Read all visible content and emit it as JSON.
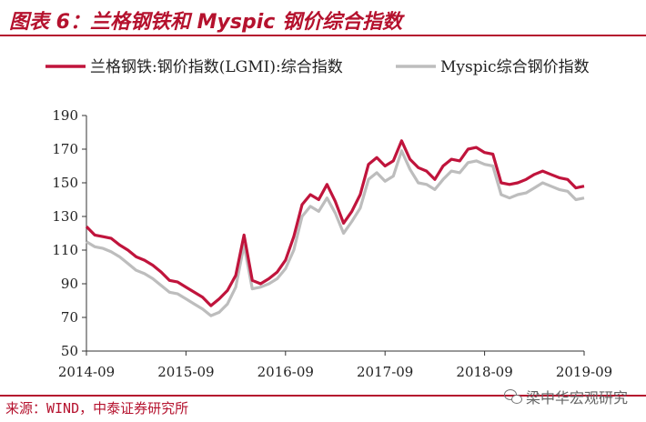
{
  "header": {
    "title": "图表 6：兰格钢铁和 Myspic 钢价综合指数"
  },
  "footer": {
    "source": "来源：WIND，中泰证券研究所",
    "watermark": "梁中华宏观研究"
  },
  "colors": {
    "accent": "#b5122e",
    "series_red": "#c0143c",
    "series_gray": "#bdbdbd"
  },
  "chart_data": {
    "type": "line",
    "title": "",
    "xlabel": "",
    "ylabel": "",
    "ylim": [
      50,
      190
    ],
    "yticks": [
      50,
      70,
      90,
      110,
      130,
      150,
      170,
      190
    ],
    "xrange": [
      "2014-09",
      "2019-09"
    ],
    "xticks": [
      "2014-09",
      "2015-09",
      "2016-09",
      "2017-09",
      "2018-09",
      "2019-09"
    ],
    "legend": "top",
    "grid": false,
    "series": [
      {
        "name": "兰格钢铁:钢价指数(LGMI):综合指数",
        "color": "#c0143c",
        "points": [
          [
            "2014-09",
            124
          ],
          [
            "2014-10",
            119
          ],
          [
            "2014-11",
            118
          ],
          [
            "2014-12",
            117
          ],
          [
            "2015-01",
            113
          ],
          [
            "2015-02",
            110
          ],
          [
            "2015-03",
            106
          ],
          [
            "2015-04",
            104
          ],
          [
            "2015-05",
            101
          ],
          [
            "2015-06",
            97
          ],
          [
            "2015-07",
            92
          ],
          [
            "2015-08",
            91
          ],
          [
            "2015-09",
            88
          ],
          [
            "2015-10",
            85
          ],
          [
            "2015-11",
            82
          ],
          [
            "2015-12",
            77
          ],
          [
            "2016-01",
            81
          ],
          [
            "2016-02",
            86
          ],
          [
            "2016-03",
            95
          ],
          [
            "2016-04",
            119
          ],
          [
            "2016-05",
            92
          ],
          [
            "2016-06",
            90
          ],
          [
            "2016-07",
            93
          ],
          [
            "2016-08",
            97
          ],
          [
            "2016-09",
            104
          ],
          [
            "2016-10",
            118
          ],
          [
            "2016-11",
            137
          ],
          [
            "2016-12",
            143
          ],
          [
            "2017-01",
            140
          ],
          [
            "2017-02",
            149
          ],
          [
            "2017-03",
            139
          ],
          [
            "2017-04",
            126
          ],
          [
            "2017-05",
            133
          ],
          [
            "2017-06",
            143
          ],
          [
            "2017-07",
            161
          ],
          [
            "2017-08",
            165
          ],
          [
            "2017-09",
            160
          ],
          [
            "2017-10",
            163
          ],
          [
            "2017-11",
            175
          ],
          [
            "2017-12",
            164
          ],
          [
            "2018-01",
            159
          ],
          [
            "2018-02",
            157
          ],
          [
            "2018-03",
            152
          ],
          [
            "2018-04",
            160
          ],
          [
            "2018-05",
            164
          ],
          [
            "2018-06",
            163
          ],
          [
            "2018-07",
            170
          ],
          [
            "2018-08",
            171
          ],
          [
            "2018-09",
            168
          ],
          [
            "2018-10",
            167
          ],
          [
            "2018-11",
            150
          ],
          [
            "2018-12",
            149
          ],
          [
            "2019-01",
            150
          ],
          [
            "2019-02",
            152
          ],
          [
            "2019-03",
            155
          ],
          [
            "2019-04",
            157
          ],
          [
            "2019-05",
            155
          ],
          [
            "2019-06",
            153
          ],
          [
            "2019-07",
            152
          ],
          [
            "2019-08",
            147
          ],
          [
            "2019-09",
            148
          ]
        ]
      },
      {
        "name": "Myspic综合钢价指数",
        "color": "#bdbdbd",
        "points": [
          [
            "2014-09",
            115
          ],
          [
            "2014-10",
            112
          ],
          [
            "2014-11",
            111
          ],
          [
            "2014-12",
            109
          ],
          [
            "2015-01",
            106
          ],
          [
            "2015-02",
            102
          ],
          [
            "2015-03",
            98
          ],
          [
            "2015-04",
            96
          ],
          [
            "2015-05",
            93
          ],
          [
            "2015-06",
            89
          ],
          [
            "2015-07",
            85
          ],
          [
            "2015-08",
            84
          ],
          [
            "2015-09",
            81
          ],
          [
            "2015-10",
            78
          ],
          [
            "2015-11",
            75
          ],
          [
            "2015-12",
            71
          ],
          [
            "2016-01",
            73
          ],
          [
            "2016-02",
            78
          ],
          [
            "2016-03",
            88
          ],
          [
            "2016-04",
            113
          ],
          [
            "2016-05",
            87
          ],
          [
            "2016-06",
            88
          ],
          [
            "2016-07",
            90
          ],
          [
            "2016-08",
            93
          ],
          [
            "2016-09",
            99
          ],
          [
            "2016-10",
            110
          ],
          [
            "2016-11",
            130
          ],
          [
            "2016-12",
            136
          ],
          [
            "2017-01",
            133
          ],
          [
            "2017-02",
            141
          ],
          [
            "2017-03",
            132
          ],
          [
            "2017-04",
            120
          ],
          [
            "2017-05",
            127
          ],
          [
            "2017-06",
            135
          ],
          [
            "2017-07",
            152
          ],
          [
            "2017-08",
            156
          ],
          [
            "2017-09",
            151
          ],
          [
            "2017-10",
            154
          ],
          [
            "2017-11",
            169
          ],
          [
            "2017-12",
            158
          ],
          [
            "2018-01",
            150
          ],
          [
            "2018-02",
            149
          ],
          [
            "2018-03",
            146
          ],
          [
            "2018-04",
            152
          ],
          [
            "2018-05",
            157
          ],
          [
            "2018-06",
            156
          ],
          [
            "2018-07",
            162
          ],
          [
            "2018-08",
            163
          ],
          [
            "2018-09",
            161
          ],
          [
            "2018-10",
            160
          ],
          [
            "2018-11",
            143
          ],
          [
            "2018-12",
            141
          ],
          [
            "2019-01",
            143
          ],
          [
            "2019-02",
            144
          ],
          [
            "2019-03",
            147
          ],
          [
            "2019-04",
            150
          ],
          [
            "2019-05",
            148
          ],
          [
            "2019-06",
            146
          ],
          [
            "2019-07",
            145
          ],
          [
            "2019-08",
            140
          ],
          [
            "2019-09",
            141
          ]
        ]
      }
    ]
  }
}
